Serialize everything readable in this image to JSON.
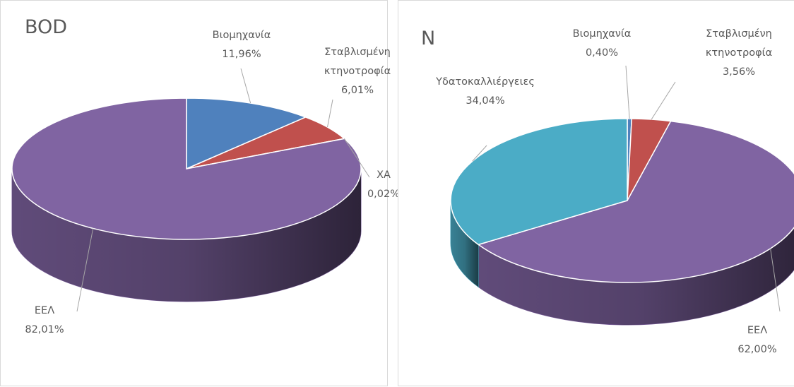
{
  "chart_data": [
    {
      "type": "pie",
      "title": "BOD",
      "categories": [
        "Βιομηχανία",
        "Σταβλισμένη κτηνοτροφία",
        "ΧΑ",
        "ΕΕΛ"
      ],
      "values": [
        11.96,
        6.01,
        0.02,
        82.01
      ],
      "value_labels": [
        "11,96%",
        "6,01%",
        "0,02%",
        "82,01%"
      ],
      "colors": [
        "#4f81bd",
        "#c0504d",
        "#9bbb59",
        "#8064a2"
      ]
    },
    {
      "type": "pie",
      "title": "N",
      "categories": [
        "Βιομηχανία",
        "Σταβλισμένη κτηνοτροφία",
        "ΕΕΛ",
        "Υδατοκαλλιέργειες"
      ],
      "values": [
        0.4,
        3.56,
        62.0,
        34.04
      ],
      "value_labels": [
        "0,40%",
        "3,56%",
        "62,00%",
        "34,04%"
      ],
      "colors": [
        "#4f81bd",
        "#c0504d",
        "#8064a2",
        "#4bacc6"
      ]
    }
  ]
}
